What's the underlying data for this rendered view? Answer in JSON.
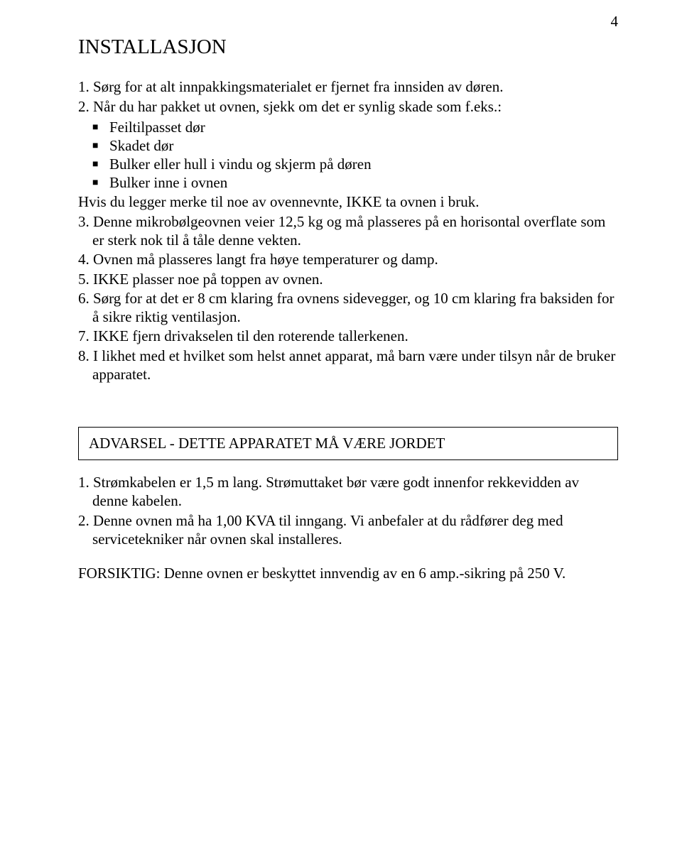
{
  "page_number": "4",
  "title": "INSTALLASJON",
  "intro_1": "1. Sørg for at alt innpakkingsmaterialet er fjernet fra innsiden av døren.",
  "intro_2": "2. Når du har pakket ut ovnen, sjekk om det er synlig skade som f.eks.:",
  "bullets": {
    "b1": "Feiltilpasset dør",
    "b2": "Skadet dør",
    "b3": "Bulker eller hull i vindu og skjerm på døren",
    "b4": "Bulker inne i ovnen"
  },
  "after_bullets": "Hvis du legger merke til noe av ovennevnte, IKKE ta ovnen i bruk.",
  "item3": "3. Denne mikrobølgeovnen veier 12,5 kg og må plasseres på en horisontal overflate som er sterk nok til å tåle denne vekten.",
  "item4": "4. Ovnen må plasseres langt fra høye temperaturer og damp.",
  "item5": "5. IKKE plasser noe på toppen av ovnen.",
  "item6": "6. Sørg for at det er 8 cm klaring fra ovnens sidevegger, og 10 cm klaring fra baksiden for å sikre riktig ventilasjon.",
  "item7": "7. IKKE fjern drivakselen til den roterende tallerkenen.",
  "item8": "8. I likhet med et hvilket som helst annet apparat, må barn være under tilsyn når de bruker apparatet.",
  "warning_title": "ADVARSEL - DETTE APPARATET MÅ VÆRE JORDET",
  "lower1": "1. Strømkabelen er 1,5 m lang. Strømuttaket bør være godt innenfor rekkevidden av denne kabelen.",
  "lower2": "2. Denne ovnen må ha 1,00 KVA til inngang. Vi anbefaler at du rådfører deg med servicetekniker når ovnen skal installeres.",
  "caution": "FORSIKTIG: Denne ovnen er beskyttet innvendig av en 6 amp.-sikring på 250 V."
}
